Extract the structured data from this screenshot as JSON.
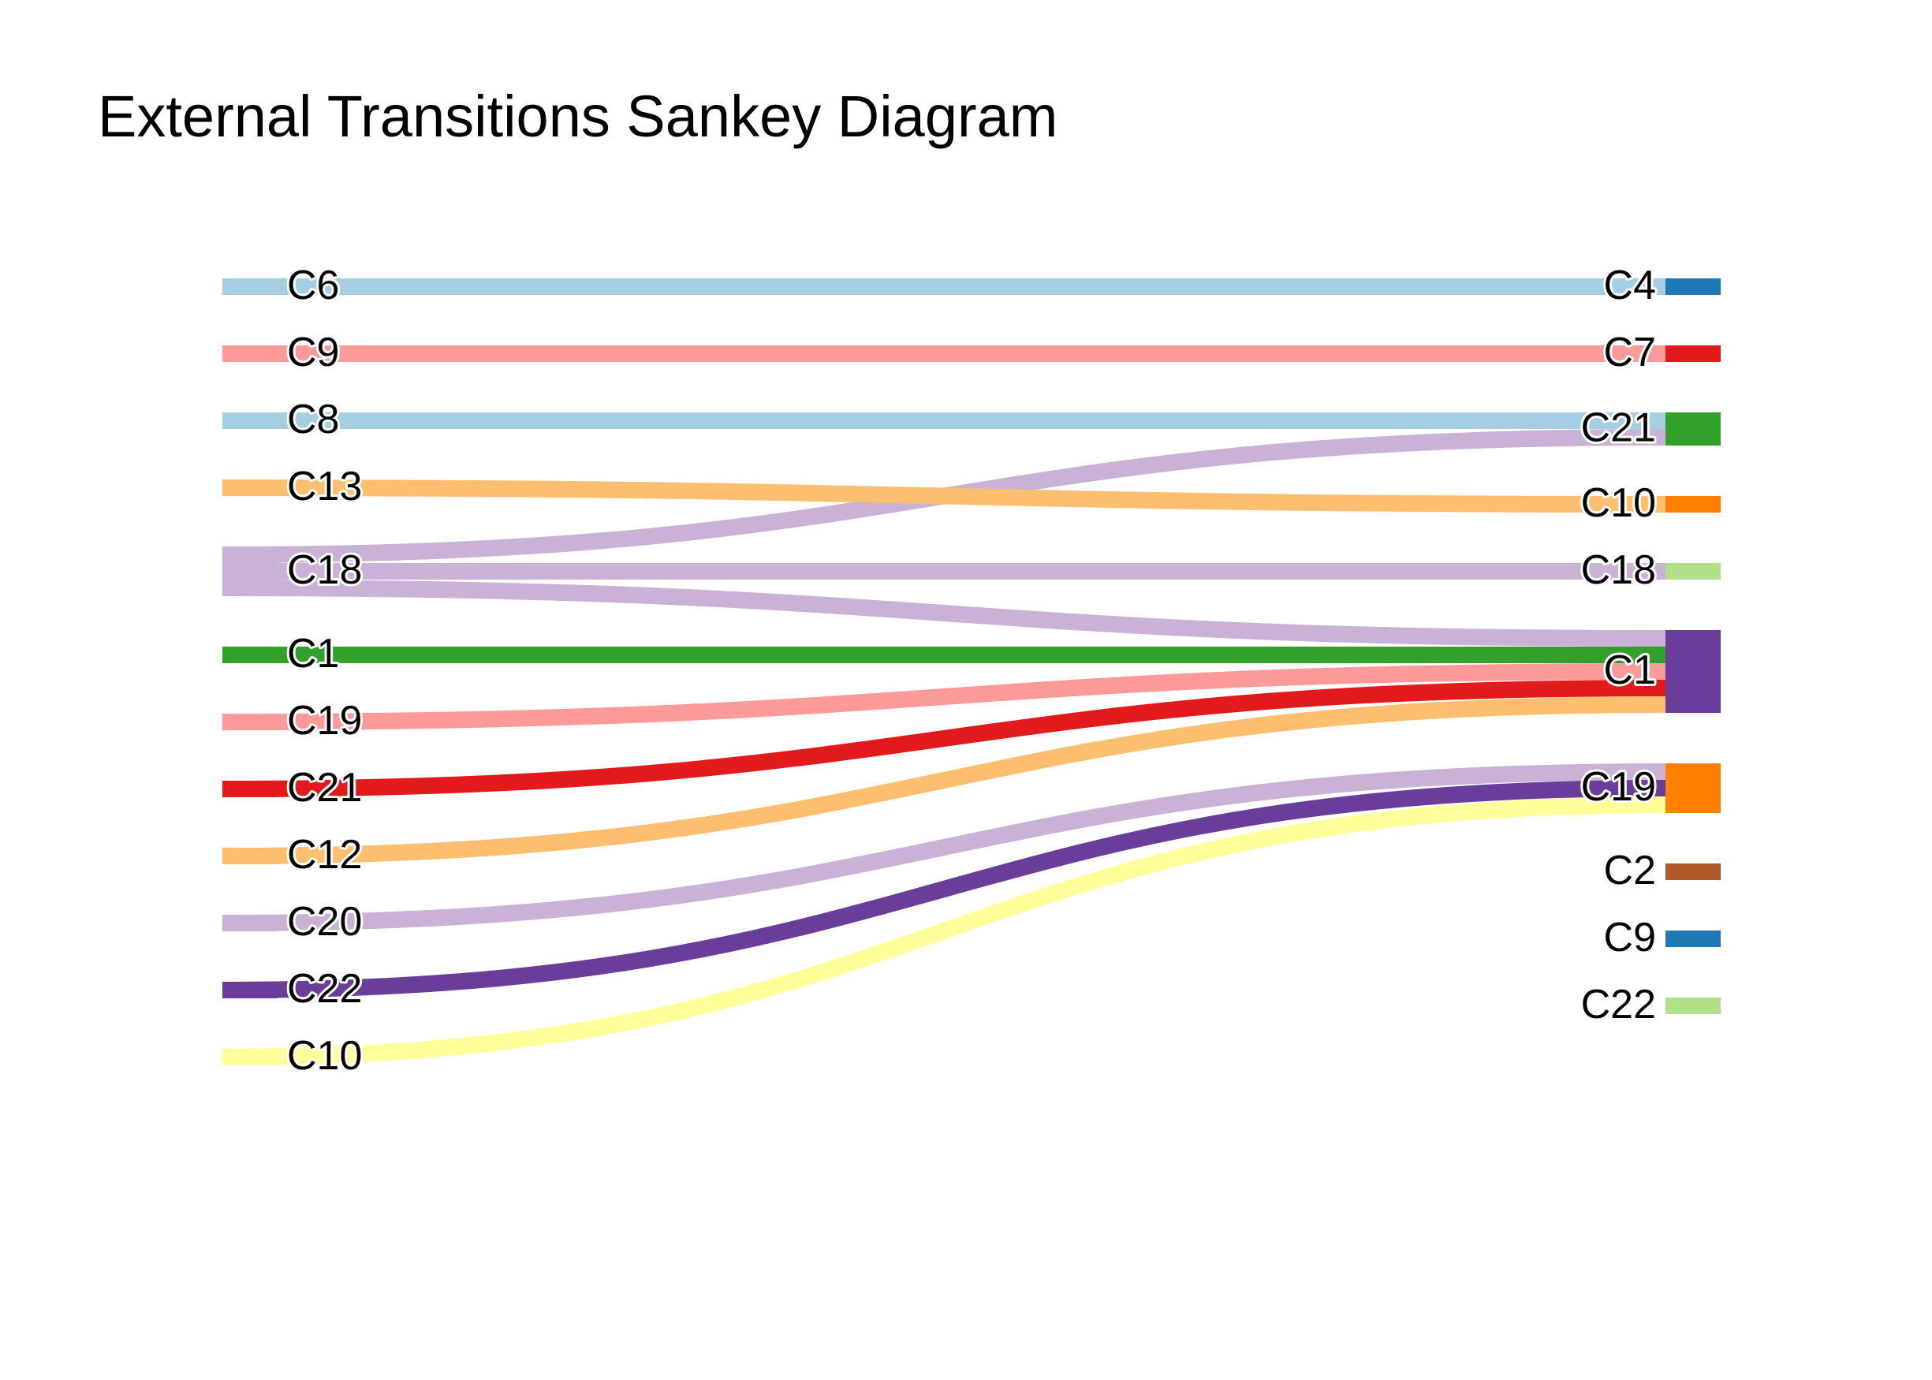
{
  "chart_data": {
    "type": "sankey",
    "title": "External Transitions Sankey Diagram",
    "sources": [
      {
        "id": "s_C6",
        "label": "C6",
        "color": "#a6cee3"
      },
      {
        "id": "s_C9",
        "label": "C9",
        "color": "#fb9a99"
      },
      {
        "id": "s_C8",
        "label": "C8",
        "color": "#a6cee3"
      },
      {
        "id": "s_C13",
        "label": "C13",
        "color": "#fdbf6f"
      },
      {
        "id": "s_C18",
        "label": "C18",
        "color": "#cab2d6"
      },
      {
        "id": "s_C1",
        "label": "C1",
        "color": "#33a02c"
      },
      {
        "id": "s_C19",
        "label": "C19",
        "color": "#fb9a99"
      },
      {
        "id": "s_C21",
        "label": "C21",
        "color": "#e31a1c"
      },
      {
        "id": "s_C12",
        "label": "C12",
        "color": "#fdbf6f"
      },
      {
        "id": "s_C20",
        "label": "C20",
        "color": "#cab2d6"
      },
      {
        "id": "s_C22",
        "label": "C22",
        "color": "#6a3d9a"
      },
      {
        "id": "s_C10",
        "label": "C10",
        "color": "#ffff99"
      }
    ],
    "targets": [
      {
        "id": "t_C4",
        "label": "C4",
        "color": "#1f78b4"
      },
      {
        "id": "t_C7",
        "label": "C7",
        "color": "#e31a1c"
      },
      {
        "id": "t_C21",
        "label": "C21",
        "color": "#33a02c"
      },
      {
        "id": "t_C10",
        "label": "C10",
        "color": "#ff7f00"
      },
      {
        "id": "t_C18",
        "label": "C18",
        "color": "#b2df8a"
      },
      {
        "id": "t_C1",
        "label": "C1",
        "color": "#6a3d9a"
      },
      {
        "id": "t_C19",
        "label": "C19",
        "color": "#ff7f00"
      },
      {
        "id": "t_C2",
        "label": "C2",
        "color": "#b15928"
      },
      {
        "id": "t_C9",
        "label": "C9",
        "color": "#1f78b4"
      },
      {
        "id": "t_C22",
        "label": "C22",
        "color": "#b2df8a"
      }
    ],
    "links": [
      {
        "source": "s_C6",
        "target": "t_C4",
        "value": 1
      },
      {
        "source": "s_C9",
        "target": "t_C7",
        "value": 1
      },
      {
        "source": "s_C8",
        "target": "t_C21",
        "value": 1
      },
      {
        "source": "s_C18",
        "target": "t_C21",
        "value": 1
      },
      {
        "source": "s_C13",
        "target": "t_C10",
        "value": 1
      },
      {
        "source": "s_C18",
        "target": "t_C18",
        "value": 1
      },
      {
        "source": "s_C18",
        "target": "t_C1",
        "value": 1
      },
      {
        "source": "s_C1",
        "target": "t_C1",
        "value": 1
      },
      {
        "source": "s_C19",
        "target": "t_C1",
        "value": 1
      },
      {
        "source": "s_C21",
        "target": "t_C1",
        "value": 1
      },
      {
        "source": "s_C12",
        "target": "t_C1",
        "value": 1
      },
      {
        "source": "s_C20",
        "target": "t_C19",
        "value": 1
      },
      {
        "source": "s_C22",
        "target": "t_C19",
        "value": 1
      },
      {
        "source": "s_C10",
        "target": "t_C19",
        "value": 1
      }
    ]
  }
}
